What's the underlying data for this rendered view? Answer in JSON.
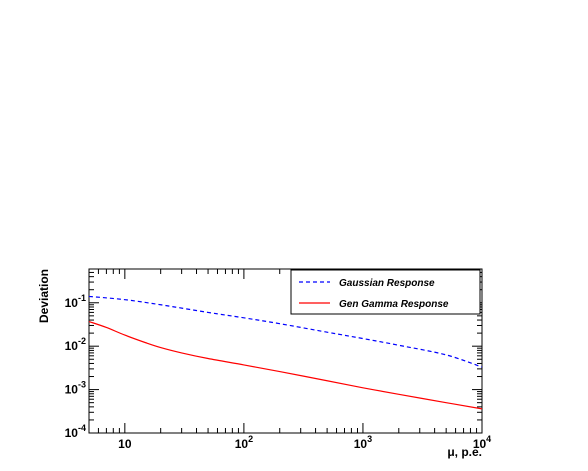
{
  "chart_data": {
    "type": "line",
    "xscale": "log",
    "yscale": "log",
    "xlim": [
      5,
      10000
    ],
    "ylim": [
      0.0001,
      0.6
    ],
    "xlabel": "μ, p.e.",
    "ylabel": "Deviation",
    "x_ticks": [
      {
        "value": 10,
        "base": "10",
        "exp": ""
      },
      {
        "value": 100,
        "base": "10",
        "exp": "2"
      },
      {
        "value": 1000,
        "base": "10",
        "exp": "3"
      },
      {
        "value": 10000,
        "base": "10",
        "exp": "4"
      }
    ],
    "y_ticks": [
      {
        "value": 0.0001,
        "base": "10",
        "exp": "-4"
      },
      {
        "value": 0.001,
        "base": "10",
        "exp": "-3"
      },
      {
        "value": 0.01,
        "base": "10",
        "exp": "-2"
      },
      {
        "value": 0.1,
        "base": "10",
        "exp": "-1"
      }
    ],
    "legend_position": "top-right",
    "grid": false,
    "series": [
      {
        "name": "Gaussian Response",
        "color": "#0000ff",
        "style": "dashed",
        "x": [
          5,
          10,
          20,
          50,
          100,
          200,
          500,
          1000,
          2000,
          5000,
          10000
        ],
        "y": [
          0.14,
          0.118,
          0.09,
          0.06,
          0.045,
          0.033,
          0.021,
          0.015,
          0.0105,
          0.0063,
          0.0033
        ]
      },
      {
        "name": "Gen Gamma Response",
        "color": "#ff0000",
        "style": "solid",
        "x": [
          5,
          7,
          10,
          15,
          20,
          30,
          50,
          100,
          200,
          500,
          1000,
          2000,
          5000,
          10000
        ],
        "y": [
          0.037,
          0.027,
          0.018,
          0.012,
          0.0093,
          0.007,
          0.0052,
          0.0037,
          0.0026,
          0.0016,
          0.0011,
          0.00078,
          0.0005,
          0.00036
        ]
      }
    ]
  }
}
